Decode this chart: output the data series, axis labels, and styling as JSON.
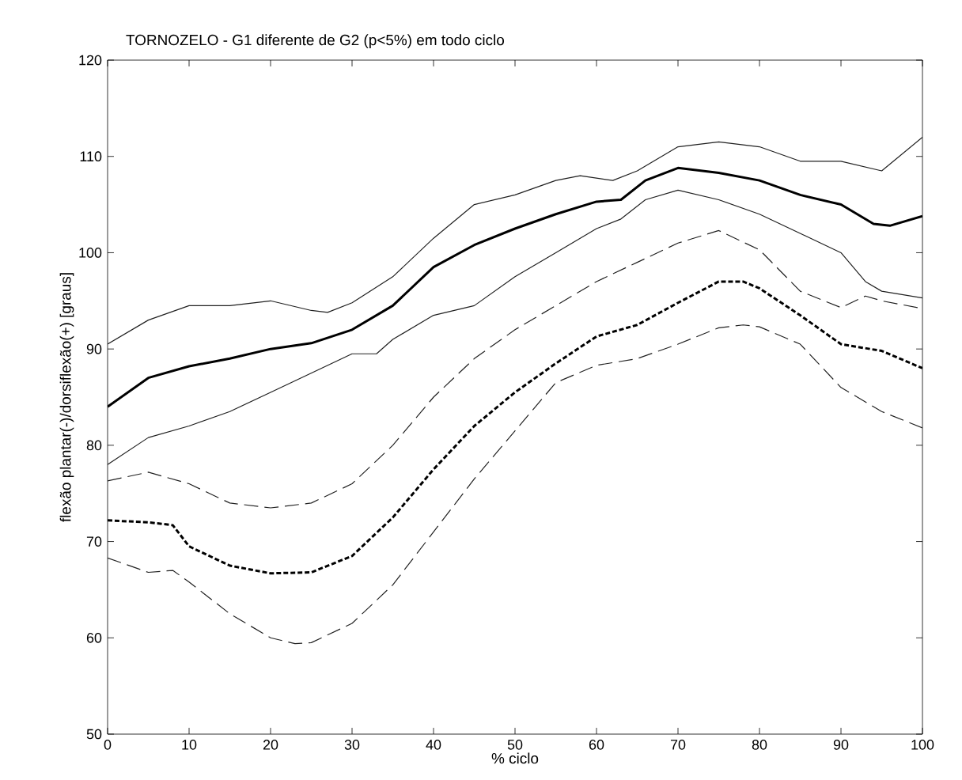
{
  "chart_data": {
    "type": "line",
    "title": "TORNOZELO - G1 diferente de G2 (p<5%) em todo ciclo",
    "xlabel": "% ciclo",
    "ylabel": "flexão plantar(-)/dorsiflexão(+) [graus]",
    "xlim": [
      0,
      100
    ],
    "ylim": [
      50,
      120
    ],
    "xticks": [
      0,
      10,
      20,
      30,
      40,
      50,
      60,
      70,
      80,
      90,
      100
    ],
    "yticks": [
      50,
      60,
      70,
      80,
      90,
      100,
      110,
      120
    ],
    "grid": false,
    "series": [
      {
        "color": "#202020",
        "line_style": "solid",
        "x": [
          0,
          5,
          10,
          15,
          20,
          25,
          27,
          30,
          35,
          40,
          45,
          50,
          55,
          58,
          62,
          65,
          70,
          75,
          80,
          85,
          90,
          95,
          100
        ],
        "values": [
          90.5,
          93,
          94.5,
          94.5,
          95,
          94,
          93.8,
          94.8,
          97.5,
          101.5,
          105,
          106,
          107.5,
          108,
          107.5,
          108.5,
          111,
          111.5,
          111,
          109.5,
          109.5,
          108.5,
          112
        ]
      },
      {
        "color": "#000000",
        "line_style": "solid",
        "x": [
          0,
          5,
          10,
          15,
          20,
          25,
          30,
          35,
          40,
          45,
          50,
          55,
          60,
          63,
          66,
          70,
          75,
          80,
          85,
          90,
          94,
          96,
          100
        ],
        "values": [
          84,
          87,
          88.2,
          89,
          90,
          90.6,
          92,
          94.5,
          98.5,
          100.8,
          102.5,
          104,
          105.3,
          105.5,
          107.5,
          108.8,
          108.3,
          107.5,
          106,
          105,
          103,
          102.8,
          103.8
        ]
      },
      {
        "color": "#202020",
        "line_style": "solid",
        "x": [
          0,
          5,
          10,
          15,
          20,
          25,
          30,
          33,
          35,
          40,
          45,
          50,
          55,
          60,
          63,
          66,
          70,
          75,
          80,
          85,
          90,
          93,
          95,
          100
        ],
        "values": [
          78,
          80.8,
          82,
          83.5,
          85.5,
          87.5,
          89.5,
          89.5,
          91,
          93.5,
          94.5,
          97.5,
          100,
          102.5,
          103.5,
          105.5,
          106.5,
          105.5,
          104,
          102,
          100,
          97,
          96,
          95.3
        ]
      },
      {
        "color": "#202020",
        "line_style": "dashed",
        "x": [
          0,
          5,
          10,
          15,
          20,
          25,
          30,
          35,
          40,
          45,
          50,
          55,
          60,
          65,
          70,
          75,
          80,
          85,
          90,
          93,
          95,
          100
        ],
        "values": [
          76.3,
          77.2,
          76,
          74,
          73.5,
          74,
          76,
          80,
          85,
          89,
          92,
          94.5,
          97,
          99,
          101,
          102.3,
          100.3,
          96,
          94.3,
          95.5,
          95,
          94.2
        ]
      },
      {
        "color": "#000000",
        "line_style": "dashed",
        "x": [
          0,
          5,
          8,
          10,
          15,
          20,
          25,
          30,
          35,
          40,
          45,
          50,
          55,
          60,
          65,
          70,
          75,
          78,
          80,
          85,
          90,
          95,
          100
        ],
        "values": [
          72.2,
          72,
          71.7,
          69.5,
          67.5,
          66.7,
          66.8,
          68.5,
          72.5,
          77.5,
          82,
          85.5,
          88.5,
          91.3,
          92.5,
          94.8,
          97,
          97,
          96.3,
          93.5,
          90.5,
          89.8,
          88
        ]
      },
      {
        "color": "#202020",
        "line_style": "dashed",
        "x": [
          0,
          5,
          8,
          10,
          15,
          20,
          23,
          25,
          30,
          35,
          40,
          45,
          50,
          55,
          60,
          65,
          70,
          75,
          78,
          80,
          85,
          90,
          95,
          100
        ],
        "values": [
          68.3,
          66.8,
          67,
          65.8,
          62.5,
          60,
          59.4,
          59.5,
          61.5,
          65.5,
          71,
          76.5,
          81.5,
          86.5,
          88.3,
          89,
          90.5,
          92.2,
          92.5,
          92.3,
          90.5,
          86,
          83.5,
          81.8
        ]
      }
    ]
  }
}
